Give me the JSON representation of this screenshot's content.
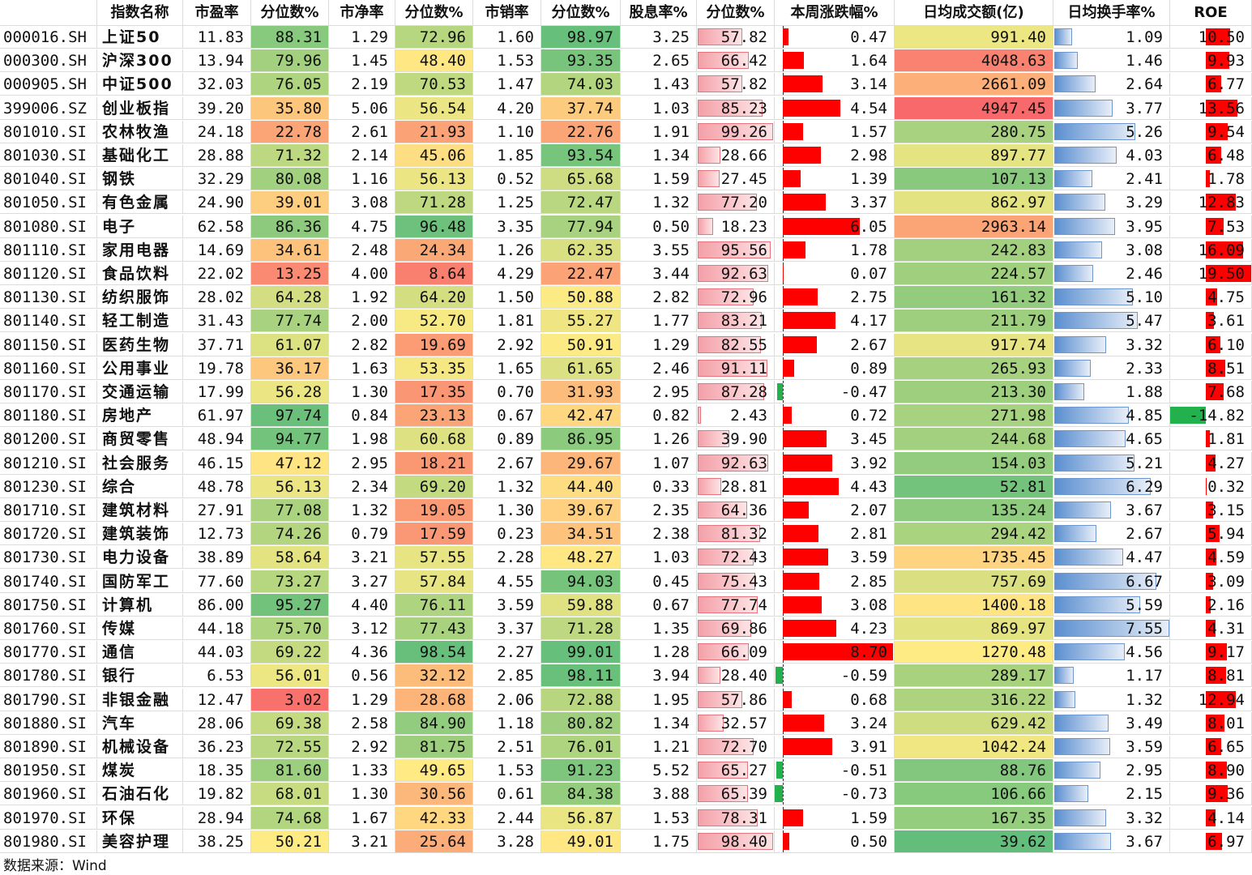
{
  "headers": [
    "",
    "指数名称",
    "市盈率",
    "分位数%",
    "市净率",
    "分位数%",
    "市销率",
    "分位数%",
    "股息率%",
    "分位数%",
    "本周涨跌幅%",
    "日均成交额(亿)",
    "日均换手率%",
    "ROE"
  ],
  "rows": [
    [
      "000016.SH",
      "上证50",
      "11.83",
      "88.31",
      "1.29",
      "72.96",
      "1.60",
      "98.97",
      "3.25",
      "57.82",
      "0.47",
      "991.40",
      "1.09",
      "10.50"
    ],
    [
      "000300.SH",
      "沪深300",
      "13.94",
      "79.96",
      "1.45",
      "48.40",
      "1.53",
      "93.35",
      "2.65",
      "66.42",
      "1.64",
      "4048.63",
      "1.46",
      "9.93"
    ],
    [
      "000905.SH",
      "中证500",
      "32.03",
      "76.05",
      "2.19",
      "70.53",
      "1.47",
      "74.03",
      "1.43",
      "57.82",
      "3.14",
      "2661.09",
      "2.64",
      "6.77"
    ],
    [
      "399006.SZ",
      "创业板指",
      "39.20",
      "35.80",
      "5.06",
      "56.54",
      "4.20",
      "37.74",
      "1.03",
      "85.23",
      "4.54",
      "4947.45",
      "3.77",
      "13.56"
    ],
    [
      "801010.SI",
      "农林牧渔",
      "24.18",
      "22.78",
      "2.61",
      "21.93",
      "1.10",
      "22.76",
      "1.91",
      "99.26",
      "1.57",
      "280.75",
      "5.26",
      "9.54"
    ],
    [
      "801030.SI",
      "基础化工",
      "28.88",
      "71.32",
      "2.14",
      "45.06",
      "1.85",
      "93.54",
      "1.34",
      "28.66",
      "2.98",
      "897.77",
      "4.03",
      "6.48"
    ],
    [
      "801040.SI",
      "钢铁",
      "32.29",
      "80.08",
      "1.16",
      "56.13",
      "0.52",
      "65.68",
      "1.59",
      "27.45",
      "1.39",
      "107.13",
      "2.41",
      "1.78"
    ],
    [
      "801050.SI",
      "有色金属",
      "24.90",
      "39.01",
      "3.08",
      "71.28",
      "1.25",
      "72.47",
      "1.32",
      "77.20",
      "3.37",
      "862.97",
      "3.29",
      "12.83"
    ],
    [
      "801080.SI",
      "电子",
      "62.58",
      "86.36",
      "4.75",
      "96.48",
      "3.35",
      "77.94",
      "0.50",
      "18.23",
      "6.05",
      "2963.14",
      "3.95",
      "7.53"
    ],
    [
      "801110.SI",
      "家用电器",
      "14.69",
      "34.61",
      "2.48",
      "24.34",
      "1.26",
      "62.35",
      "3.55",
      "95.56",
      "1.78",
      "242.83",
      "3.08",
      "16.09"
    ],
    [
      "801120.SI",
      "食品饮料",
      "22.02",
      "13.25",
      "4.00",
      "8.64",
      "4.29",
      "22.47",
      "3.44",
      "92.63",
      "0.07",
      "224.57",
      "2.46",
      "19.50"
    ],
    [
      "801130.SI",
      "纺织服饰",
      "28.02",
      "64.28",
      "1.92",
      "64.20",
      "1.50",
      "50.88",
      "2.82",
      "72.96",
      "2.75",
      "161.32",
      "5.10",
      "4.75"
    ],
    [
      "801140.SI",
      "轻工制造",
      "31.43",
      "77.74",
      "2.00",
      "52.70",
      "1.81",
      "55.27",
      "1.77",
      "83.21",
      "4.17",
      "211.79",
      "5.47",
      "3.61"
    ],
    [
      "801150.SI",
      "医药生物",
      "37.71",
      "61.07",
      "2.82",
      "19.69",
      "2.92",
      "50.91",
      "1.29",
      "82.55",
      "2.67",
      "917.74",
      "3.32",
      "6.10"
    ],
    [
      "801160.SI",
      "公用事业",
      "19.78",
      "36.17",
      "1.63",
      "53.35",
      "1.65",
      "61.65",
      "2.46",
      "91.11",
      "0.89",
      "265.93",
      "2.33",
      "8.51"
    ],
    [
      "801170.SI",
      "交通运输",
      "17.99",
      "56.28",
      "1.30",
      "17.35",
      "0.70",
      "31.93",
      "2.95",
      "87.28",
      "-0.47",
      "213.30",
      "1.88",
      "7.68"
    ],
    [
      "801180.SI",
      "房地产",
      "61.97",
      "97.74",
      "0.84",
      "23.13",
      "0.67",
      "42.47",
      "0.82",
      "2.43",
      "0.72",
      "271.98",
      "4.85",
      "-14.82"
    ],
    [
      "801200.SI",
      "商贸零售",
      "48.94",
      "94.77",
      "1.98",
      "60.68",
      "0.89",
      "86.95",
      "1.26",
      "39.90",
      "3.45",
      "244.68",
      "4.65",
      "1.81"
    ],
    [
      "801210.SI",
      "社会服务",
      "46.15",
      "47.12",
      "2.95",
      "18.21",
      "2.67",
      "29.67",
      "1.07",
      "92.63",
      "3.92",
      "154.03",
      "5.21",
      "4.27"
    ],
    [
      "801230.SI",
      "综合",
      "48.78",
      "56.13",
      "2.34",
      "69.20",
      "1.32",
      "44.40",
      "0.33",
      "28.81",
      "4.43",
      "52.81",
      "6.29",
      "0.32"
    ],
    [
      "801710.SI",
      "建筑材料",
      "27.91",
      "77.08",
      "1.32",
      "19.05",
      "1.30",
      "39.67",
      "2.35",
      "64.36",
      "2.07",
      "135.24",
      "3.67",
      "3.15"
    ],
    [
      "801720.SI",
      "建筑装饰",
      "12.73",
      "74.26",
      "0.79",
      "17.59",
      "0.23",
      "34.51",
      "2.38",
      "81.32",
      "2.81",
      "294.42",
      "2.67",
      "5.94"
    ],
    [
      "801730.SI",
      "电力设备",
      "38.89",
      "58.64",
      "3.21",
      "57.55",
      "2.28",
      "48.27",
      "1.03",
      "72.43",
      "3.59",
      "1735.45",
      "4.47",
      "4.59"
    ],
    [
      "801740.SI",
      "国防军工",
      "77.60",
      "73.27",
      "3.27",
      "57.84",
      "4.55",
      "94.03",
      "0.45",
      "75.43",
      "2.85",
      "757.69",
      "6.67",
      "3.09"
    ],
    [
      "801750.SI",
      "计算机",
      "86.00",
      "95.27",
      "4.40",
      "76.11",
      "3.59",
      "59.88",
      "0.67",
      "77.74",
      "3.08",
      "1400.18",
      "5.59",
      "2.16"
    ],
    [
      "801760.SI",
      "传媒",
      "44.18",
      "75.70",
      "3.12",
      "77.43",
      "3.37",
      "71.28",
      "1.35",
      "69.86",
      "4.23",
      "869.97",
      "7.55",
      "4.31"
    ],
    [
      "801770.SI",
      "通信",
      "44.03",
      "69.22",
      "4.36",
      "98.54",
      "2.27",
      "99.01",
      "1.28",
      "66.09",
      "8.70",
      "1270.48",
      "4.56",
      "9.17"
    ],
    [
      "801780.SI",
      "银行",
      "6.53",
      "56.01",
      "0.56",
      "32.12",
      "2.85",
      "98.11",
      "3.94",
      "28.40",
      "-0.59",
      "289.17",
      "1.17",
      "8.81"
    ],
    [
      "801790.SI",
      "非银金融",
      "12.47",
      "3.02",
      "1.29",
      "28.68",
      "2.06",
      "72.88",
      "1.95",
      "57.86",
      "0.68",
      "316.22",
      "1.32",
      "12.94"
    ],
    [
      "801880.SI",
      "汽车",
      "28.06",
      "69.38",
      "2.58",
      "84.90",
      "1.18",
      "80.82",
      "1.34",
      "32.57",
      "3.24",
      "629.42",
      "3.49",
      "8.01"
    ],
    [
      "801890.SI",
      "机械设备",
      "36.23",
      "72.55",
      "2.92",
      "81.75",
      "2.51",
      "76.01",
      "1.21",
      "72.70",
      "3.91",
      "1042.24",
      "3.59",
      "6.65"
    ],
    [
      "801950.SI",
      "煤炭",
      "18.35",
      "81.60",
      "1.33",
      "49.65",
      "1.53",
      "91.23",
      "5.52",
      "65.27",
      "-0.51",
      "88.76",
      "2.95",
      "8.90"
    ],
    [
      "801960.SI",
      "石油石化",
      "19.82",
      "68.01",
      "1.30",
      "30.56",
      "0.61",
      "84.38",
      "3.88",
      "65.39",
      "-0.73",
      "106.66",
      "2.15",
      "9.36"
    ],
    [
      "801970.SI",
      "环保",
      "28.94",
      "74.68",
      "1.67",
      "42.33",
      "2.44",
      "56.87",
      "1.53",
      "78.31",
      "1.59",
      "167.35",
      "3.32",
      "4.14"
    ],
    [
      "801980.SI",
      "美容护理",
      "38.25",
      "50.21",
      "3.21",
      "25.64",
      "3.28",
      "49.01",
      "1.75",
      "98.40",
      "0.50",
      "39.62",
      "3.67",
      "6.97"
    ]
  ],
  "source": "数据来源：Wind"
}
